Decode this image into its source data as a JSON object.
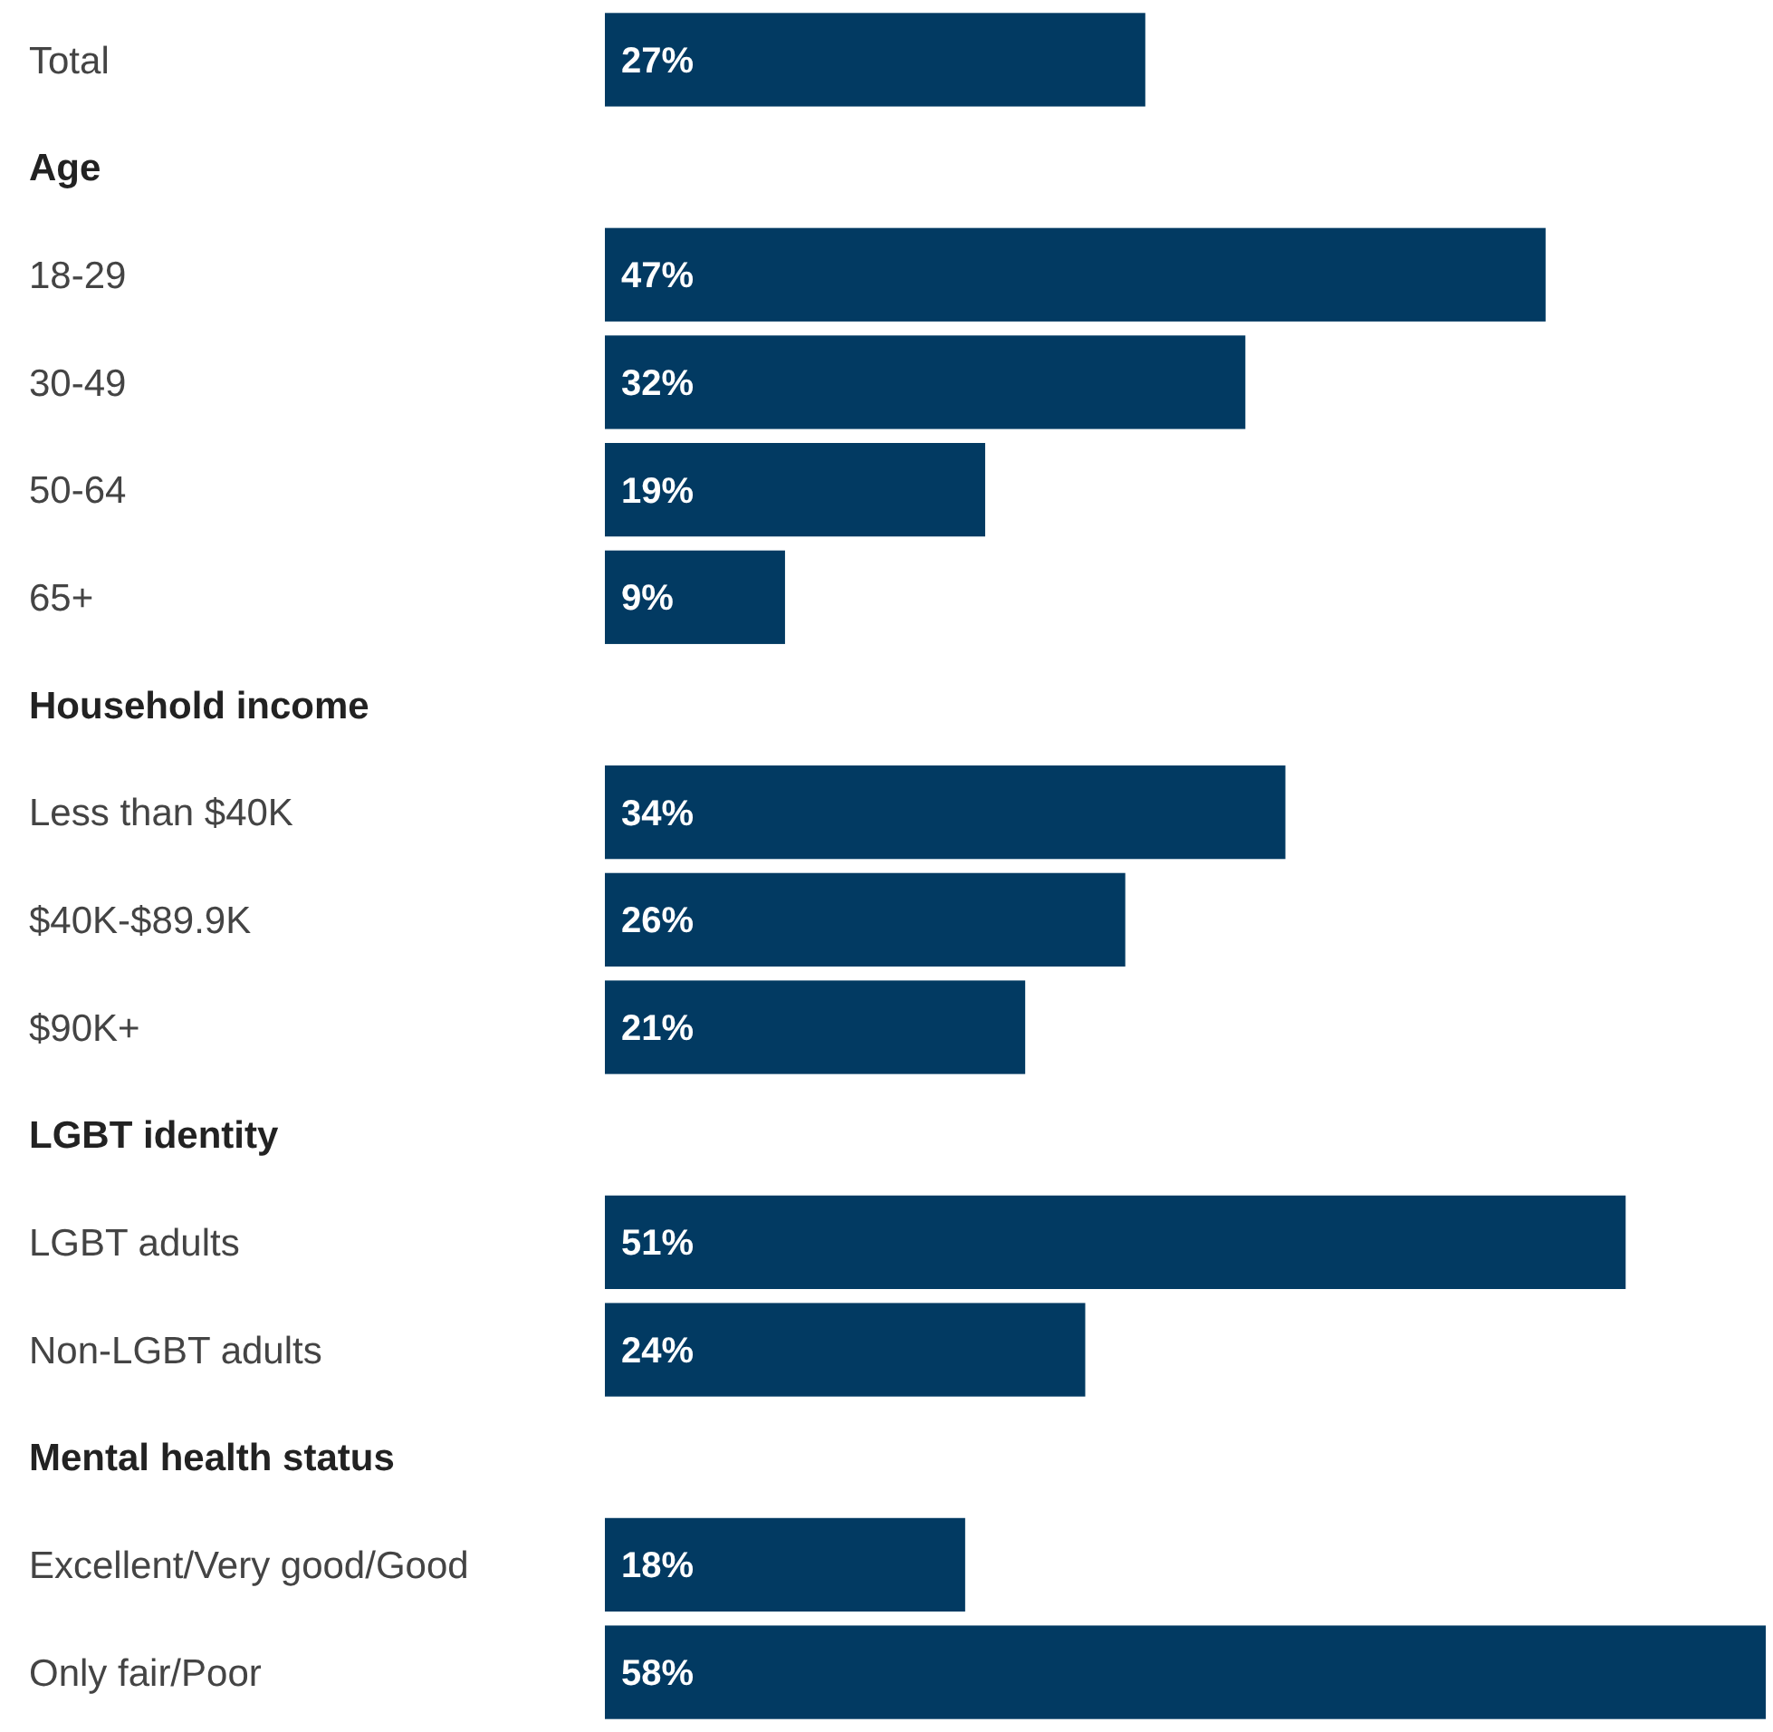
{
  "chart_data": {
    "type": "bar",
    "orientation": "horizontal",
    "categories": [
      "Total",
      "Age",
      "18-29",
      "30-49",
      "50-64",
      "65+",
      "Household income",
      "Less than $40K",
      "$40K-$89.9K",
      "$90K+",
      "LGBT identity",
      "LGBT adults",
      "Non-LGBT adults",
      "Mental health status",
      "Excellent/Very good/Good",
      "Only fair/Poor"
    ],
    "values": [
      27,
      null,
      47,
      32,
      19,
      9,
      null,
      34,
      26,
      21,
      null,
      51,
      24,
      null,
      18,
      58
    ],
    "value_labels": [
      "27%",
      null,
      "47%",
      "32%",
      "19%",
      "9%",
      null,
      "34%",
      "26%",
      "21%",
      null,
      "51%",
      "24%",
      null,
      "18%",
      "58%"
    ],
    "color": "#023a62"
  }
}
